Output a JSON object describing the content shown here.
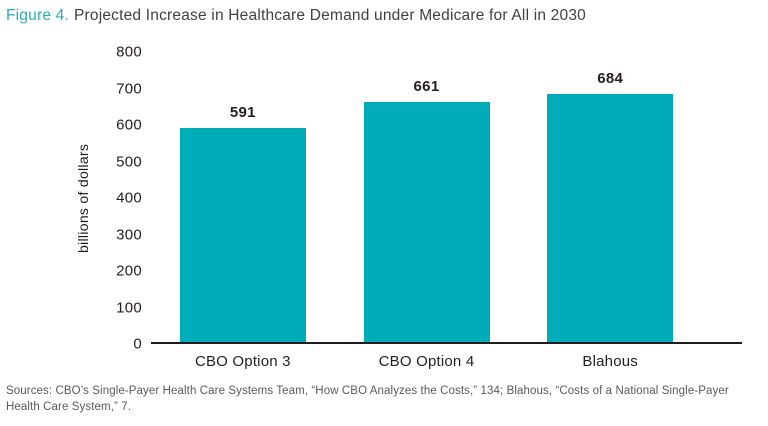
{
  "title": {
    "prefix": "Figure 4.",
    "text": "Projected Increase in Healthcare Demand under Medicare for All in 2030"
  },
  "colors": {
    "accent": "#2AACB8",
    "bar": "#00ACB8",
    "axis_text": "#231F20",
    "title_text": "#414042",
    "source_text": "#58595B"
  },
  "chart_data": {
    "type": "bar",
    "categories": [
      "CBO Option 3",
      "CBO Option 4",
      "Blahous"
    ],
    "values": [
      591,
      661,
      684
    ],
    "data_labels": [
      "591",
      "661",
      "684"
    ],
    "title": "Projected Increase in Healthcare Demand under Medicare for All in 2030",
    "xlabel": "",
    "ylabel": "billions of dollars",
    "ylim": [
      0,
      800
    ],
    "yticks": [
      800,
      700,
      600,
      500,
      400,
      300,
      200,
      100,
      0
    ],
    "grid": false,
    "legend": false,
    "bar_color": "#00ACB8"
  },
  "source_note": "Sources: CBO’s Single-Payer Health Care Systems Team, “How CBO Analyzes the Costs,” 134; Blahous, “Costs of a National Single-Payer Health Care System,” 7."
}
